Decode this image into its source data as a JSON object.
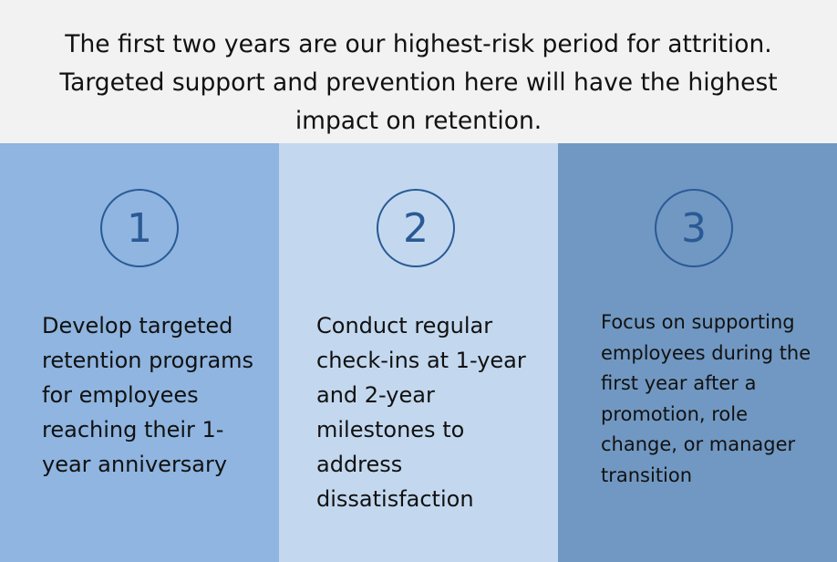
{
  "header": {
    "text": "The first two years are our highest-risk period for attrition. Targeted support and prevention here will have the highest impact on retention."
  },
  "panels": [
    {
      "number": "1",
      "text": "Develop targeted retention programs for employees reaching their 1-year anniversary",
      "background": "#8fb5e0"
    },
    {
      "number": "2",
      "text": "Conduct regular check-ins at 1-year and 2-year milestones to address dissatisfaction",
      "background": "#c3d8ee"
    },
    {
      "number": "3",
      "text": "Focus on supporting employees during the first year after a promotion, role change, or manager transition",
      "background": "#7198c2"
    }
  ],
  "colors": {
    "circle_stroke": "#2a5a96",
    "header_background": "#f2f2f2"
  }
}
